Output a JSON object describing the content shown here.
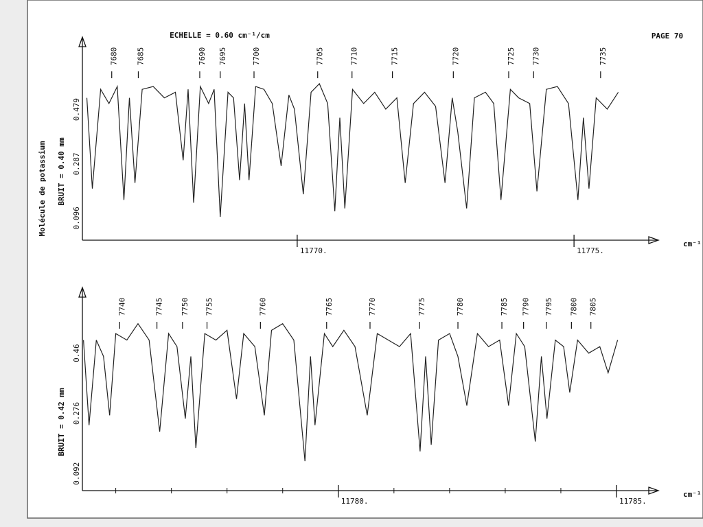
{
  "header": {
    "scale": "ECHELLE = 0.60 cm⁻¹/cm",
    "page": "PAGE 70",
    "side_label": "Molécule de potassium"
  },
  "chart_data": [
    {
      "type": "line",
      "y_label": "BRUIT = 0.40 mm",
      "x_unit": "cm⁻¹",
      "color": "#222222",
      "xlim": [
        11766.12,
        11776.35
      ],
      "ylim": [
        0.018,
        0.72
      ],
      "xticks": [
        {
          "value": 11770,
          "label": "11770."
        },
        {
          "value": 11775,
          "label": "11775."
        }
      ],
      "yticks": [
        0.096,
        0.287,
        0.479
      ],
      "line_numbers": [
        {
          "label": 7680,
          "x": 11766.65
        },
        {
          "label": 7685,
          "x": 11767.13
        },
        {
          "label": 7690,
          "x": 11768.24
        },
        {
          "label": 7695,
          "x": 11768.61
        },
        {
          "label": 7700,
          "x": 11769.22
        },
        {
          "label": 7705,
          "x": 11770.37
        },
        {
          "label": 7710,
          "x": 11770.99
        },
        {
          "label": 7715,
          "x": 11771.72
        },
        {
          "label": 7720,
          "x": 11772.82
        },
        {
          "label": 7725,
          "x": 11773.82
        },
        {
          "label": 7730,
          "x": 11774.27
        },
        {
          "label": 7735,
          "x": 11775.48
        }
      ],
      "x": [
        11766.2,
        11766.3,
        11766.45,
        11766.6,
        11766.75,
        11766.87,
        11766.97,
        11767.07,
        11767.2,
        11767.4,
        11767.6,
        11767.8,
        11767.94,
        11768.03,
        11768.13,
        11768.25,
        11768.4,
        11768.5,
        11768.61,
        11768.75,
        11768.85,
        11768.96,
        11769.05,
        11769.13,
        11769.25,
        11769.4,
        11769.55,
        11769.71,
        11769.85,
        11769.95,
        11770.11,
        11770.25,
        11770.4,
        11770.55,
        11770.68,
        11770.77,
        11770.86,
        11771.0,
        11771.2,
        11771.4,
        11771.6,
        11771.8,
        11771.95,
        11772.1,
        11772.3,
        11772.5,
        11772.67,
        11772.8,
        11772.9,
        11773.06,
        11773.2,
        11773.4,
        11773.55,
        11773.68,
        11773.85,
        11774.0,
        11774.2,
        11774.33,
        11774.5,
        11774.7,
        11774.9,
        11775.07,
        11775.17,
        11775.27,
        11775.4,
        11775.6,
        11775.8
      ],
      "values": [
        0.52,
        0.2,
        0.55,
        0.5,
        0.56,
        0.16,
        0.52,
        0.22,
        0.55,
        0.56,
        0.52,
        0.54,
        0.3,
        0.55,
        0.15,
        0.56,
        0.5,
        0.55,
        0.1,
        0.54,
        0.52,
        0.23,
        0.5,
        0.23,
        0.56,
        0.55,
        0.5,
        0.28,
        0.53,
        0.48,
        0.18,
        0.54,
        0.57,
        0.5,
        0.12,
        0.45,
        0.13,
        0.55,
        0.5,
        0.54,
        0.48,
        0.52,
        0.22,
        0.5,
        0.54,
        0.49,
        0.22,
        0.52,
        0.4,
        0.13,
        0.52,
        0.54,
        0.5,
        0.16,
        0.55,
        0.52,
        0.5,
        0.19,
        0.55,
        0.56,
        0.5,
        0.16,
        0.45,
        0.2,
        0.52,
        0.48,
        0.54
      ]
    },
    {
      "type": "line",
      "y_label": "BRUIT = 0.42 mm",
      "x_unit": "cm⁻¹",
      "color": "#222222",
      "xlim": [
        11775.4,
        11785.58
      ],
      "ylim": [
        0.04,
        0.648
      ],
      "xticks": [
        {
          "value": 11780,
          "label": "11780."
        },
        {
          "value": 11785,
          "label": "11785."
        }
      ],
      "minor_xticks": [
        11776,
        11777,
        11778,
        11779,
        11781,
        11782,
        11783,
        11784
      ],
      "yticks": [
        0.092,
        0.276,
        0.46
      ],
      "line_numbers": [
        {
          "label": 7740,
          "x": 11776.07
        },
        {
          "label": 7745,
          "x": 11776.74
        },
        {
          "label": 7750,
          "x": 11777.2
        },
        {
          "label": 7755,
          "x": 11777.64
        },
        {
          "label": 7760,
          "x": 11778.6
        },
        {
          "label": 7765,
          "x": 11779.79
        },
        {
          "label": 7770,
          "x": 11780.57
        },
        {
          "label": 7775,
          "x": 11781.46
        },
        {
          "label": 7780,
          "x": 11782.15
        },
        {
          "label": 7785,
          "x": 11782.94
        },
        {
          "label": 7790,
          "x": 11783.33
        },
        {
          "label": 7795,
          "x": 11783.74
        },
        {
          "label": 7800,
          "x": 11784.19
        },
        {
          "label": 7805,
          "x": 11784.54
        }
      ],
      "x": [
        11775.42,
        11775.52,
        11775.65,
        11775.78,
        11775.89,
        11776.0,
        11776.2,
        11776.4,
        11776.6,
        11776.79,
        11776.95,
        11777.1,
        11777.25,
        11777.35,
        11777.44,
        11777.6,
        11777.8,
        11778.0,
        11778.17,
        11778.3,
        11778.5,
        11778.67,
        11778.8,
        11779.0,
        11779.2,
        11779.4,
        11779.5,
        11779.58,
        11779.75,
        11779.9,
        11780.1,
        11780.3,
        11780.52,
        11780.7,
        11780.9,
        11781.1,
        11781.3,
        11781.47,
        11781.57,
        11781.67,
        11781.8,
        11782.0,
        11782.15,
        11782.31,
        11782.5,
        11782.7,
        11782.9,
        11783.06,
        11783.2,
        11783.35,
        11783.54,
        11783.65,
        11783.75,
        11783.9,
        11784.05,
        11784.16,
        11784.3,
        11784.5,
        11784.7,
        11784.85,
        11785.02
      ],
      "values": [
        0.5,
        0.24,
        0.5,
        0.45,
        0.27,
        0.52,
        0.5,
        0.55,
        0.5,
        0.22,
        0.52,
        0.48,
        0.26,
        0.45,
        0.17,
        0.52,
        0.5,
        0.53,
        0.32,
        0.52,
        0.48,
        0.27,
        0.53,
        0.55,
        0.5,
        0.13,
        0.45,
        0.24,
        0.52,
        0.48,
        0.53,
        0.48,
        0.27,
        0.52,
        0.5,
        0.48,
        0.52,
        0.16,
        0.45,
        0.18,
        0.5,
        0.52,
        0.45,
        0.3,
        0.52,
        0.48,
        0.5,
        0.3,
        0.52,
        0.48,
        0.19,
        0.45,
        0.26,
        0.5,
        0.48,
        0.34,
        0.5,
        0.46,
        0.48,
        0.4,
        0.5
      ]
    }
  ]
}
